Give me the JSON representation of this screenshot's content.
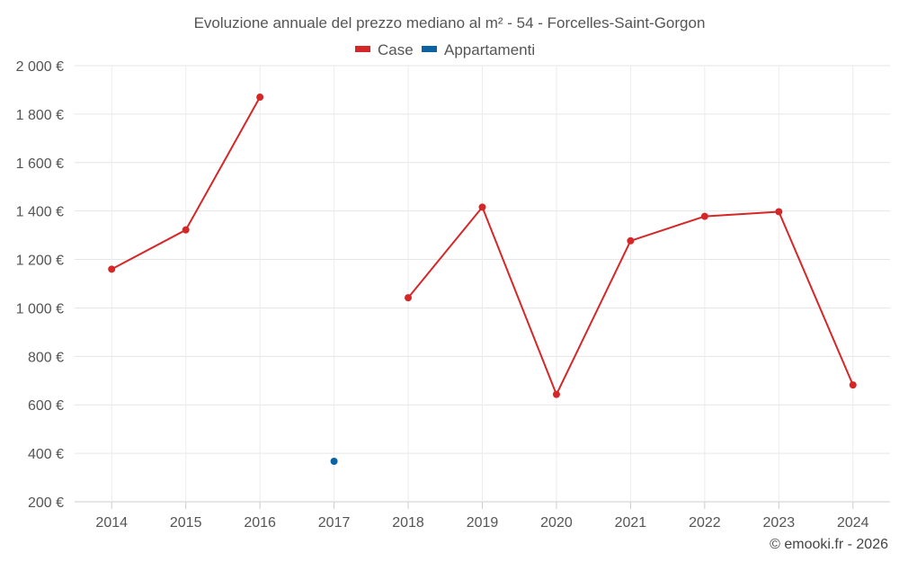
{
  "chart_data": {
    "type": "line",
    "title": "Evoluzione annuale del prezzo mediano al m² - 54 - Forcelles-Saint-Gorgon",
    "categories": [
      "2014",
      "2015",
      "2016",
      "2017",
      "2018",
      "2019",
      "2020",
      "2021",
      "2022",
      "2023",
      "2024"
    ],
    "series": [
      {
        "name": "Case",
        "color": "#d62728",
        "values": [
          1160,
          1322,
          1870,
          null,
          1042,
          1416,
          643,
          1277,
          1378,
          1397,
          682
        ]
      },
      {
        "name": "Appartamenti",
        "color": "#0b63a3",
        "values": [
          null,
          null,
          null,
          367,
          null,
          null,
          null,
          null,
          null,
          null,
          null
        ]
      }
    ],
    "y_ticks": [
      "200 €",
      "400 €",
      "600 €",
      "800 €",
      "1 000 €",
      "1 200 €",
      "1 400 €",
      "1 600 €",
      "1 800 €",
      "2 000 €"
    ],
    "ylim": [
      200,
      2000
    ],
    "grid": true,
    "legend_position": "top-center"
  },
  "credit": "© emooki.fr - 2026"
}
